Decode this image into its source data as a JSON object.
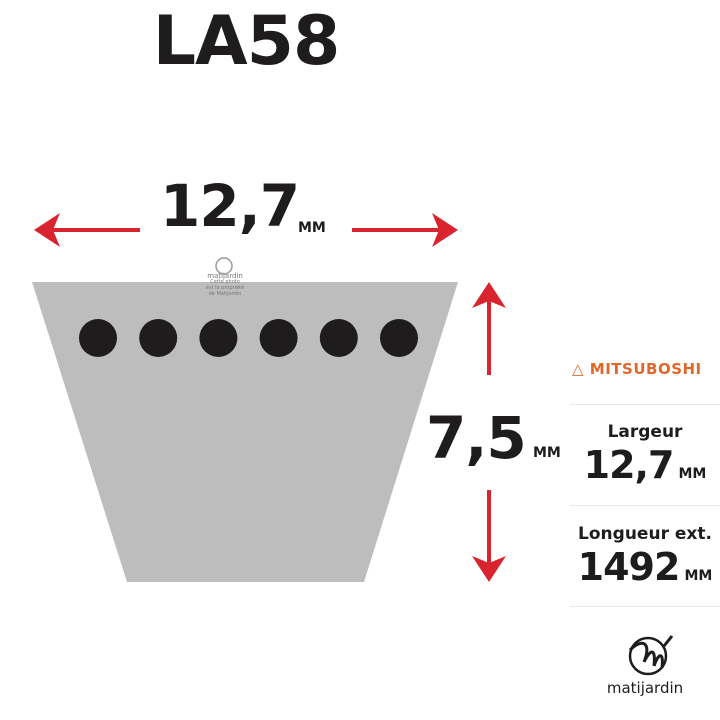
{
  "title": "LA58",
  "width": {
    "value": "12,7",
    "unit": "MM"
  },
  "height": {
    "value": "7,5",
    "unit": "MM"
  },
  "belt": {
    "ribs": 6,
    "fill": "#bdbdbd",
    "dot_color": "#1e1c1d"
  },
  "arrow_color": "#d9242f",
  "watermark": {
    "brand": "matijardin",
    "lines": [
      "Cette photo",
      "est la propriété",
      "de Matijardin"
    ]
  },
  "panel": {
    "brand": "MITSUBOSHI",
    "brand_color": "#e0662a",
    "specs": [
      {
        "label": "Largeur",
        "value": "12,7",
        "unit": "MM"
      },
      {
        "label": "Longueur ext.",
        "value": "1492",
        "unit": "MM"
      }
    ],
    "logo_text": "matijardin"
  }
}
